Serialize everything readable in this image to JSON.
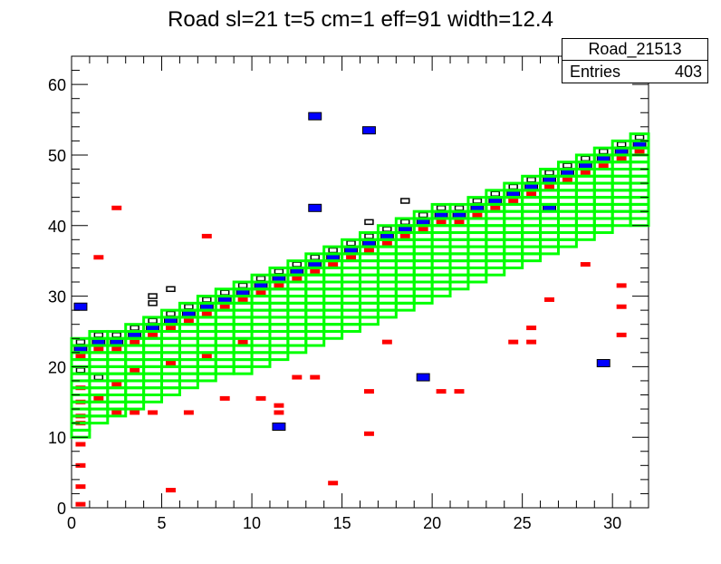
{
  "title": "Road sl=21 t=5 cm=1 eff=91 width=12.4",
  "stats": {
    "name": "Road_21513",
    "entries_label": "Entries",
    "entries": "403"
  },
  "chart_data": {
    "type": "heatmap",
    "title": "Road sl=21 t=5 cm=1 eff=91 width=12.4",
    "xlim": [
      0,
      32
    ],
    "ylim": [
      0,
      64
    ],
    "xticks": [
      0,
      5,
      10,
      15,
      20,
      25,
      30
    ],
    "yticks": [
      0,
      10,
      20,
      30,
      40,
      50,
      60
    ],
    "road_color": "#00ff00",
    "road_tops": [
      24,
      25,
      25,
      26,
      27,
      28,
      29,
      30,
      31,
      32,
      33,
      34,
      35,
      36,
      37,
      38,
      39,
      40,
      41,
      42,
      43,
      43,
      44,
      45,
      46,
      47,
      48,
      49,
      50,
      51,
      52,
      53
    ],
    "road_bottoms": [
      10,
      12,
      13,
      14,
      15,
      16,
      17,
      18,
      19,
      19,
      20,
      21,
      22,
      23,
      24,
      25,
      26,
      27,
      28,
      29,
      30,
      31,
      32,
      33,
      34,
      35,
      36,
      37,
      38,
      39,
      40,
      40
    ],
    "hits_black": [
      [
        0.5,
        23.5
      ],
      [
        1.5,
        24.5
      ],
      [
        2.5,
        24.5
      ],
      [
        3.5,
        25.5
      ],
      [
        4.5,
        26.5
      ],
      [
        5.5,
        27.5
      ],
      [
        6.5,
        28.5
      ],
      [
        7.5,
        29.5
      ],
      [
        8.5,
        30.5
      ],
      [
        9.5,
        31.5
      ],
      [
        10.5,
        32.5
      ],
      [
        11.5,
        33.5
      ],
      [
        12.5,
        34.5
      ],
      [
        13.5,
        35.5
      ],
      [
        14.5,
        36.5
      ],
      [
        15.5,
        37.5
      ],
      [
        16.5,
        38.5
      ],
      [
        17.5,
        39.5
      ],
      [
        18.5,
        40.5
      ],
      [
        19.5,
        41.5
      ],
      [
        20.5,
        42.5
      ],
      [
        21.5,
        42.5
      ],
      [
        22.5,
        43.5
      ],
      [
        23.5,
        44.5
      ],
      [
        24.5,
        45.5
      ],
      [
        25.5,
        46.5
      ],
      [
        26.5,
        47.5
      ],
      [
        27.5,
        48.5
      ],
      [
        28.5,
        49.5
      ],
      [
        29.5,
        50.5
      ],
      [
        30.5,
        51.5
      ],
      [
        31.5,
        52.5
      ],
      [
        4.5,
        30
      ],
      [
        4.5,
        29
      ],
      [
        5.5,
        31
      ],
      [
        16.5,
        40.5
      ],
      [
        18.5,
        43.5
      ],
      [
        0.5,
        19.5
      ],
      [
        1.5,
        18.5
      ]
    ],
    "hits_blue": [
      [
        0.5,
        22.5
      ],
      [
        1.5,
        23.5
      ],
      [
        2.5,
        23.5
      ],
      [
        3.5,
        24.5
      ],
      [
        4.5,
        25.5
      ],
      [
        5.5,
        26.5
      ],
      [
        6.5,
        27.5
      ],
      [
        7.5,
        28.5
      ],
      [
        8.5,
        29.5
      ],
      [
        9.5,
        30.5
      ],
      [
        10.5,
        31.5
      ],
      [
        11.5,
        32.5
      ],
      [
        12.5,
        33.5
      ],
      [
        13.5,
        34.5
      ],
      [
        14.5,
        35.5
      ],
      [
        15.5,
        36.5
      ],
      [
        16.5,
        37.5
      ],
      [
        17.5,
        38.5
      ],
      [
        18.5,
        39.5
      ],
      [
        19.5,
        40.5
      ],
      [
        20.5,
        41.5
      ],
      [
        21.5,
        41.5
      ],
      [
        22.5,
        42.5
      ],
      [
        23.5,
        43.5
      ],
      [
        24.5,
        44.5
      ],
      [
        25.5,
        45.5
      ],
      [
        26.5,
        46.5
      ],
      [
        27.5,
        47.5
      ],
      [
        28.5,
        48.5
      ],
      [
        29.5,
        49.5
      ],
      [
        30.5,
        50.5
      ],
      [
        31.5,
        51.5
      ],
      [
        13.5,
        55.5
      ],
      [
        16.5,
        53.5
      ],
      [
        13.5,
        42.5
      ],
      [
        11.5,
        11.5
      ],
      [
        19.5,
        18.5
      ],
      [
        29.5,
        20.5
      ],
      [
        26.5,
        42.5
      ],
      [
        0.5,
        28.5
      ]
    ],
    "hits_red": [
      [
        0.5,
        21.5
      ],
      [
        1.5,
        22.5
      ],
      [
        2.5,
        22.5
      ],
      [
        3.5,
        23.5
      ],
      [
        4.5,
        24.5
      ],
      [
        5.5,
        25.5
      ],
      [
        6.5,
        26.5
      ],
      [
        7.5,
        27.5
      ],
      [
        8.5,
        28.5
      ],
      [
        9.5,
        29.5
      ],
      [
        10.5,
        30.5
      ],
      [
        11.5,
        31.5
      ],
      [
        12.5,
        32.5
      ],
      [
        13.5,
        33.5
      ],
      [
        14.5,
        34.5
      ],
      [
        15.5,
        35.5
      ],
      [
        16.5,
        36.5
      ],
      [
        17.5,
        37.5
      ],
      [
        18.5,
        38.5
      ],
      [
        19.5,
        39.5
      ],
      [
        20.5,
        40.5
      ],
      [
        21.5,
        40.5
      ],
      [
        22.5,
        41.5
      ],
      [
        23.5,
        42.5
      ],
      [
        24.5,
        43.5
      ],
      [
        25.5,
        44.5
      ],
      [
        26.5,
        45.5
      ],
      [
        27.5,
        46.5
      ],
      [
        28.5,
        47.5
      ],
      [
        29.5,
        48.5
      ],
      [
        30.5,
        49.5
      ],
      [
        31.5,
        50.5
      ],
      [
        0.5,
        0.5
      ],
      [
        0.5,
        3
      ],
      [
        0.5,
        6
      ],
      [
        0.5,
        9
      ],
      [
        0.5,
        12
      ],
      [
        0.5,
        13
      ],
      [
        0.5,
        15
      ],
      [
        0.5,
        17
      ],
      [
        1.5,
        35.5
      ],
      [
        2.5,
        42.5
      ],
      [
        5.5,
        2.5
      ],
      [
        7.5,
        38.5
      ],
      [
        10.5,
        15.5
      ],
      [
        8.5,
        15.5
      ],
      [
        14.5,
        3.5
      ],
      [
        16.5,
        10.5
      ],
      [
        16.5,
        16.5
      ],
      [
        19.5,
        18.5
      ],
      [
        21.5,
        16.5
      ],
      [
        20.5,
        16.5
      ],
      [
        25.5,
        25.5
      ],
      [
        26.5,
        29.5
      ],
      [
        28.5,
        34.5
      ],
      [
        30.5,
        31.5
      ],
      [
        30.5,
        28.5
      ],
      [
        30.5,
        24.5
      ],
      [
        24.5,
        23.5
      ],
      [
        25.5,
        23.5
      ],
      [
        17.5,
        23.5
      ],
      [
        12.5,
        18.5
      ],
      [
        13.5,
        18.5
      ],
      [
        11.5,
        14.5
      ],
      [
        11.5,
        13.5
      ],
      [
        4.5,
        13.5
      ],
      [
        6.5,
        13.5
      ],
      [
        3.5,
        13.5
      ],
      [
        2.5,
        13.5
      ],
      [
        1.5,
        15.5
      ],
      [
        2.5,
        17.5
      ],
      [
        3.5,
        19.5
      ],
      [
        5.5,
        20.5
      ],
      [
        7.5,
        21.5
      ],
      [
        9.5,
        23.5
      ]
    ]
  }
}
